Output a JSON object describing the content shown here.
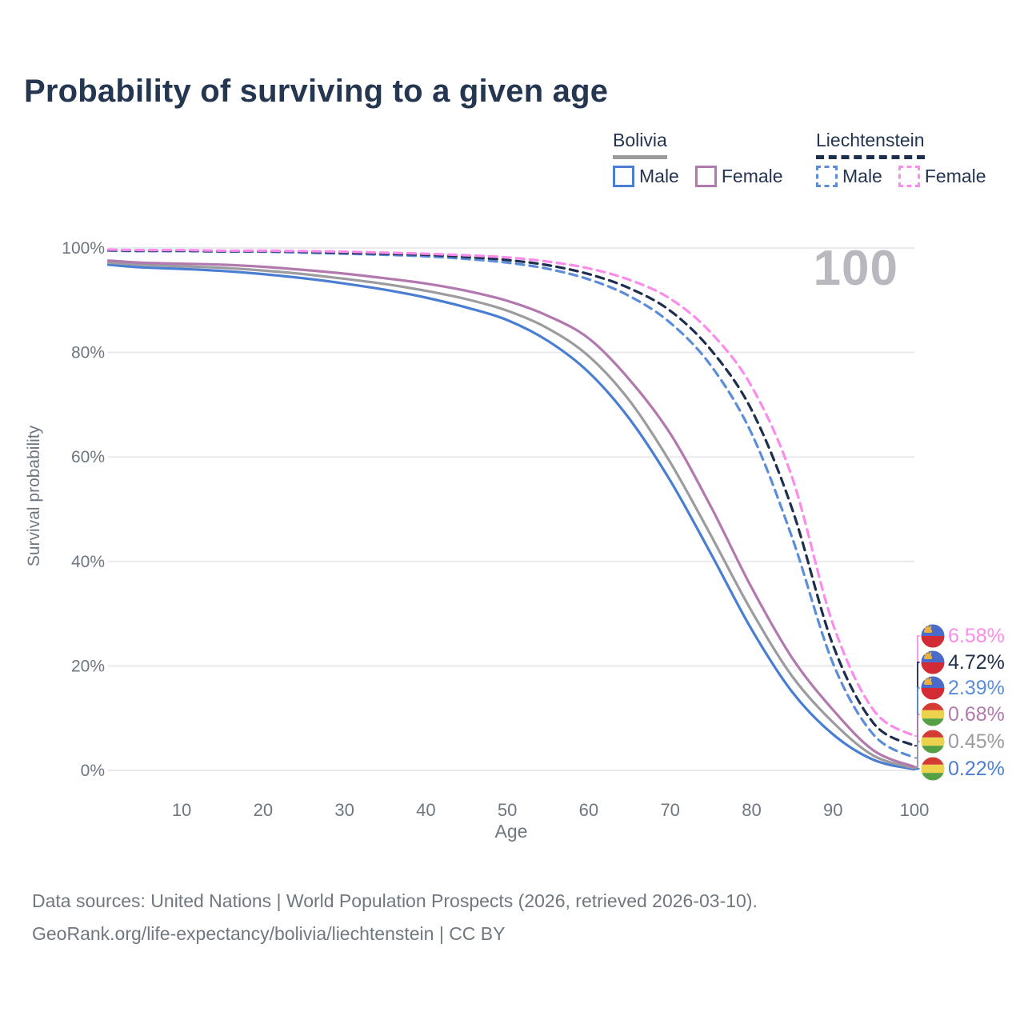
{
  "header": {
    "title": "Probability of surviving to a given age"
  },
  "watermark_age": "100",
  "legend": {
    "bolivia": {
      "title": "Bolivia",
      "male_label": "Male",
      "female_label": "Female"
    },
    "liechtenstein": {
      "title": "Liechtenstein",
      "male_label": "Male",
      "female_label": "Female"
    }
  },
  "footer": {
    "line1": "Data sources: United Nations | World Population Prospects (2026, retrieved 2026-03-10).",
    "line2": "GeoRank.org/life-expectancy/bolivia/liechtenstein | CC BY"
  },
  "colors": {
    "title_text": "#253750",
    "legend_text": "#24344f",
    "tick_text": "#6e7680",
    "gridline": "#e9e9ee",
    "watermark": "#b9b8bf",
    "bolivia_male": "#4a7ed2",
    "bolivia_total": "#9b9ba0",
    "bolivia_female": "#b279ae",
    "liechtenstein_male": "#5b8dd9",
    "liechtenstein_total": "#1e2f4d",
    "liechtenstein_female": "#fb8ceb",
    "flag_bolivia_red": "#d33b33",
    "flag_bolivia_yellow": "#edd24e",
    "flag_bolivia_green": "#55a044",
    "flag_liechtenstein_blue": "#4a6bca",
    "flag_liechtenstein_red": "#d32b35",
    "flag_liechtenstein_gold": "#e8b23e"
  },
  "chart_data": {
    "type": "line",
    "title": "Probability of surviving to a given age",
    "xlabel": "Age",
    "ylabel": "Survival probability",
    "xlim": [
      0,
      100
    ],
    "ylim": [
      0,
      100
    ],
    "grid": "horizontal",
    "x_ticks": [
      10,
      20,
      30,
      40,
      50,
      60,
      70,
      80,
      90,
      100
    ],
    "y_tick_values": [
      0,
      20,
      40,
      60,
      80,
      100
    ],
    "y_tick_labels": [
      "0%",
      "20%",
      "40%",
      "60%",
      "80%",
      "100%"
    ],
    "ages": [
      1,
      5,
      10,
      15,
      20,
      25,
      30,
      35,
      40,
      45,
      50,
      55,
      60,
      65,
      70,
      75,
      80,
      85,
      90,
      95,
      100
    ],
    "series": [
      {
        "id": "bolivia-male",
        "name": "Bolivia Male",
        "style": "solid",
        "color": "#4a7ed2",
        "flag": "bolivia",
        "end_label": "0.22%",
        "end_value": 0.22,
        "values": [
          96.8,
          96.3,
          96.0,
          95.6,
          95.0,
          94.2,
          93.2,
          92.0,
          90.5,
          88.6,
          86.2,
          82.2,
          76.2,
          67.3,
          55.5,
          41.5,
          27.0,
          15.0,
          6.9,
          2.0,
          0.22
        ]
      },
      {
        "id": "bolivia-total",
        "name": "Bolivia (both sexes)",
        "style": "solid",
        "color": "#9b9ba0",
        "flag": "bolivia",
        "end_label": "0.45%",
        "end_value": 0.45,
        "values": [
          97.2,
          96.8,
          96.5,
          96.2,
          95.7,
          95.0,
          94.1,
          93.1,
          91.8,
          90.2,
          88.0,
          84.6,
          79.3,
          70.8,
          59.0,
          45.0,
          30.5,
          18.0,
          9.2,
          2.8,
          0.45
        ]
      },
      {
        "id": "bolivia-female",
        "name": "Bolivia Female",
        "style": "solid",
        "color": "#b279ae",
        "flag": "bolivia",
        "end_label": "0.68%",
        "end_value": 0.68,
        "values": [
          97.6,
          97.2,
          97.0,
          96.8,
          96.4,
          95.8,
          95.1,
          94.2,
          93.2,
          91.8,
          89.9,
          87.0,
          82.7,
          74.8,
          64.5,
          50.5,
          35.0,
          21.5,
          11.6,
          3.8,
          0.68
        ]
      },
      {
        "id": "liechtenstein-male",
        "name": "Liechtenstein Male",
        "style": "dashed",
        "color": "#5b8dd9",
        "flag": "liechtenstein",
        "end_label": "2.39%",
        "end_value": 2.39,
        "values": [
          99.5,
          99.4,
          99.4,
          99.3,
          99.3,
          99.1,
          98.9,
          98.7,
          98.4,
          97.9,
          97.2,
          96.0,
          94.0,
          90.8,
          85.7,
          77.5,
          64.5,
          44.5,
          20.5,
          6.8,
          2.39
        ]
      },
      {
        "id": "liechtenstein-total",
        "name": "Liechtenstein (both sexes)",
        "style": "dashed",
        "color": "#1e2f4d",
        "flag": "liechtenstein",
        "end_label": "4.72%",
        "end_value": 4.72,
        "values": [
          99.6,
          99.5,
          99.5,
          99.4,
          99.4,
          99.3,
          99.1,
          98.9,
          98.7,
          98.3,
          97.7,
          96.7,
          95.0,
          92.3,
          88.0,
          80.5,
          69.0,
          50.0,
          24.0,
          9.0,
          4.72
        ]
      },
      {
        "id": "liechtenstein-female",
        "name": "Liechtenstein Female",
        "style": "dashed",
        "color": "#fb8ceb",
        "flag": "liechtenstein",
        "end_label": "6.58%",
        "end_value": 6.58,
        "values": [
          99.7,
          99.6,
          99.6,
          99.5,
          99.5,
          99.4,
          99.3,
          99.1,
          98.9,
          98.6,
          98.2,
          97.4,
          96.1,
          93.9,
          90.3,
          83.8,
          73.5,
          56.0,
          28.0,
          11.5,
          6.58
        ]
      }
    ]
  }
}
